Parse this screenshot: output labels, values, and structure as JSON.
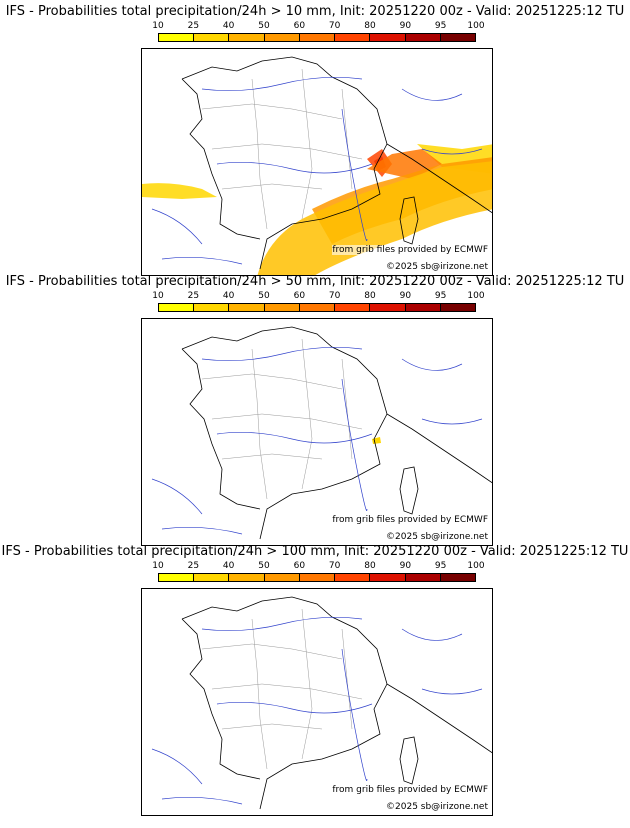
{
  "panels": [
    {
      "title": "IFS - Probabilities total precipitation/24h > 10 mm, Init: 20251220 00z - Valid: 20251225:12 TU",
      "precip_patches": true
    },
    {
      "title": "IFS - Probabilities total precipitation/24h > 50 mm, Init: 20251220 00z - Valid: 20251225:12 TU",
      "precip_patches": "small"
    },
    {
      "title": "IFS - Probabilities total precipitation/24h > 100 mm, Init: 20251220 00z - Valid: 20251225:12 TU",
      "precip_patches": false
    }
  ],
  "colorbar": {
    "ticks": [
      "10",
      "25",
      "40",
      "50",
      "60",
      "70",
      "80",
      "90",
      "95",
      "100"
    ],
    "colors": [
      "#ffff00",
      "#ffd700",
      "#ffb300",
      "#ff9900",
      "#ff7700",
      "#ff4400",
      "#dd1100",
      "#aa0000",
      "#770000"
    ]
  },
  "credits": {
    "source": "from grib files provided by ECMWF",
    "copyright": "©2025 sb@irizone.net"
  }
}
